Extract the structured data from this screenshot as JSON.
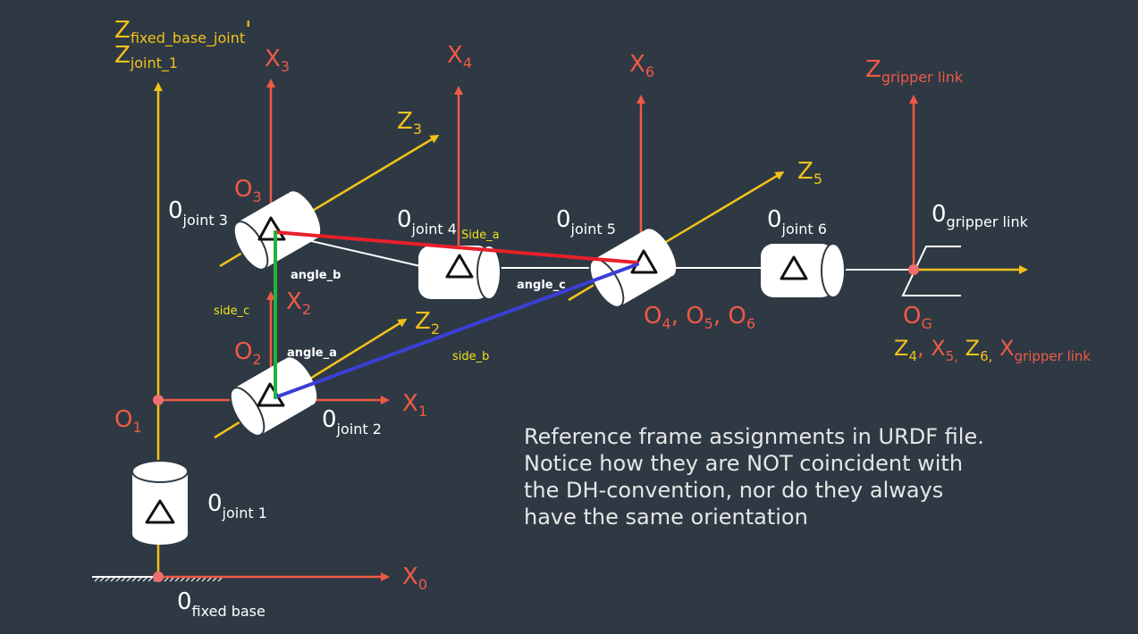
{
  "colors": {
    "background": "#2e3944",
    "yellow": "#f2c21a",
    "red": "#ef5a45",
    "white": "#ffffff",
    "grey_text": "#e6e6e6",
    "side_a": "#e8202a",
    "side_b": "#3b3fd6",
    "side_c": "#22b33a",
    "small_label_yellow": "#f2e21a"
  },
  "icons": {
    "joint_symbol": "triangle-icon",
    "origin_marker": "origin-dot-icon",
    "ground": "ground-hatch-icon"
  },
  "labels": {
    "z_fixed_base_joint": {
      "main": "Z",
      "sub": "fixed_base_joint",
      "suffix": "'"
    },
    "z_joint_1": {
      "main": "Z",
      "sub": "joint_1"
    },
    "x3": {
      "main": "X",
      "sub": "3"
    },
    "x4": {
      "main": "X",
      "sub": "4"
    },
    "x6": {
      "main": "X",
      "sub": "6"
    },
    "z_gripper": {
      "main": "Z",
      "sub": "gripper link"
    },
    "z3": {
      "main": "Z",
      "sub": "3"
    },
    "z5": {
      "main": "Z",
      "sub": "5"
    },
    "o3": {
      "main": "O",
      "sub": "3"
    },
    "o2": {
      "main": "O",
      "sub": "2"
    },
    "o1": {
      "main": "O",
      "sub": "1"
    },
    "og": {
      "main": "O",
      "sub": "G"
    },
    "x2": {
      "main": "X",
      "sub": "2"
    },
    "z2": {
      "main": "Z",
      "sub": "2"
    },
    "x1": {
      "main": "X",
      "sub": "1"
    },
    "x0": {
      "main": "X",
      "sub": "0"
    },
    "frame_joint3": {
      "main": "0",
      "sub": "joint 3"
    },
    "frame_joint4": {
      "main": "0",
      "sub": "joint 4"
    },
    "frame_joint5": {
      "main": "0",
      "sub": "joint 5"
    },
    "frame_joint6": {
      "main": "0",
      "sub": "joint 6"
    },
    "frame_gripper": {
      "main": "0",
      "sub": "gripper link"
    },
    "frame_joint2": {
      "main": "0",
      "sub": "joint 2"
    },
    "frame_joint1": {
      "main": "0",
      "sub": "joint 1"
    },
    "frame_fixed_base": {
      "main": "0",
      "sub": "fixed base"
    },
    "o456": [
      {
        "main": "O",
        "sub": "4"
      },
      {
        "sep": ", "
      },
      {
        "main": "O",
        "sub": "5"
      },
      {
        "sep": ", "
      },
      {
        "main": "O",
        "sub": "6"
      }
    ],
    "z4x5z6xg": [
      {
        "main": "Z",
        "sub": "4",
        "color": "yellow"
      },
      {
        "sep": ", ",
        "color": "red"
      },
      {
        "main": "X",
        "sub": "5,",
        "color": "red"
      },
      {
        "sep": " ",
        "color": "red"
      },
      {
        "main": "Z",
        "sub": "6,",
        "color": "yellow"
      },
      {
        "sep": " ",
        "color": "red"
      },
      {
        "main": "X",
        "sub": "gripper link",
        "color": "red"
      }
    ]
  },
  "annotations": {
    "side_a": "Side_a",
    "side_b": "side_b",
    "side_c": "side_c",
    "angle_a": "angle_a",
    "angle_b": "angle_b",
    "angle_c": "angle_c"
  },
  "note": {
    "lines": [
      "Reference frame assignments in URDF file.",
      "Notice how they are NOT coincident with",
      "the DH-convention, nor do they always",
      "have the same orientation"
    ]
  }
}
